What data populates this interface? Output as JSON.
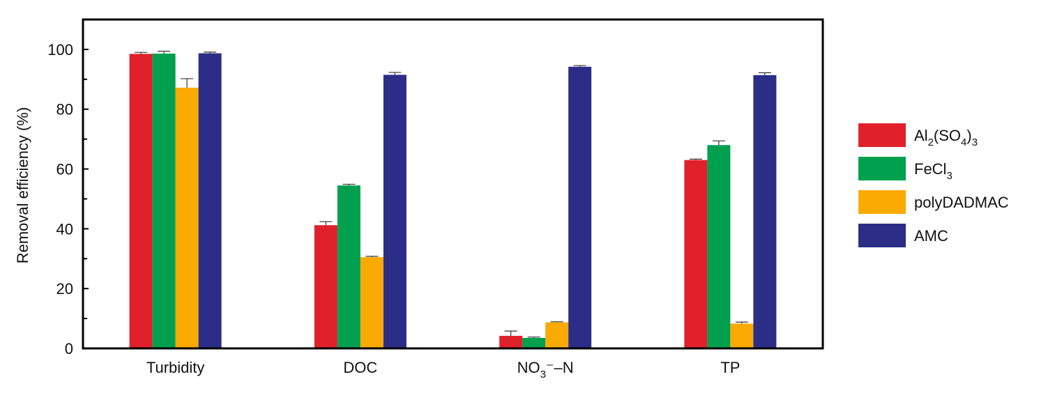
{
  "chart_data": {
    "type": "bar",
    "ylabel": "Removal efficiency (%)",
    "ylim": [
      0,
      110
    ],
    "yticks": [
      0,
      20,
      40,
      60,
      80,
      100
    ],
    "categories": [
      {
        "parts": [
          {
            "t": "Turbidity",
            "s": "n"
          }
        ]
      },
      {
        "parts": [
          {
            "t": "DOC",
            "s": "n"
          }
        ]
      },
      {
        "parts": [
          {
            "t": "NO",
            "s": "n"
          },
          {
            "t": "3",
            "s": "sub"
          },
          {
            "t": "⁻",
            "s": "n"
          },
          {
            "t": "–N",
            "s": "n"
          }
        ]
      },
      {
        "parts": [
          {
            "t": "TP",
            "s": "n"
          }
        ]
      }
    ],
    "series": [
      {
        "name_parts": [
          {
            "t": "Al",
            "s": "n"
          },
          {
            "t": "2",
            "s": "sub"
          },
          {
            "t": "(SO",
            "s": "n"
          },
          {
            "t": "4",
            "s": "sub"
          },
          {
            "t": ")",
            "s": "n"
          },
          {
            "t": "3",
            "s": "sub"
          }
        ],
        "color": "#e0202a",
        "values": [
          98.5,
          41.2,
          4.2,
          63.0
        ],
        "errors": [
          0.5,
          1.2,
          1.6,
          0.3
        ]
      },
      {
        "name_parts": [
          {
            "t": "FeCl",
            "s": "n"
          },
          {
            "t": "3",
            "s": "sub"
          }
        ],
        "color": "#00a04e",
        "values": [
          98.6,
          54.5,
          3.5,
          68.0
        ],
        "errors": [
          0.8,
          0.4,
          0.3,
          1.4
        ]
      },
      {
        "name_parts": [
          {
            "t": "polyDADMAC",
            "s": "n"
          }
        ],
        "color": "#fbaa04",
        "values": [
          87.2,
          30.5,
          8.7,
          8.3
        ],
        "errors": [
          3.0,
          0.3,
          0.2,
          0.5
        ]
      },
      {
        "name_parts": [
          {
            "t": "AMC",
            "s": "n"
          }
        ],
        "color": "#2b2d87",
        "values": [
          98.7,
          91.5,
          94.2,
          91.4
        ],
        "errors": [
          0.4,
          0.8,
          0.4,
          0.8
        ]
      }
    ],
    "legend_position": "right",
    "grid": false
  }
}
